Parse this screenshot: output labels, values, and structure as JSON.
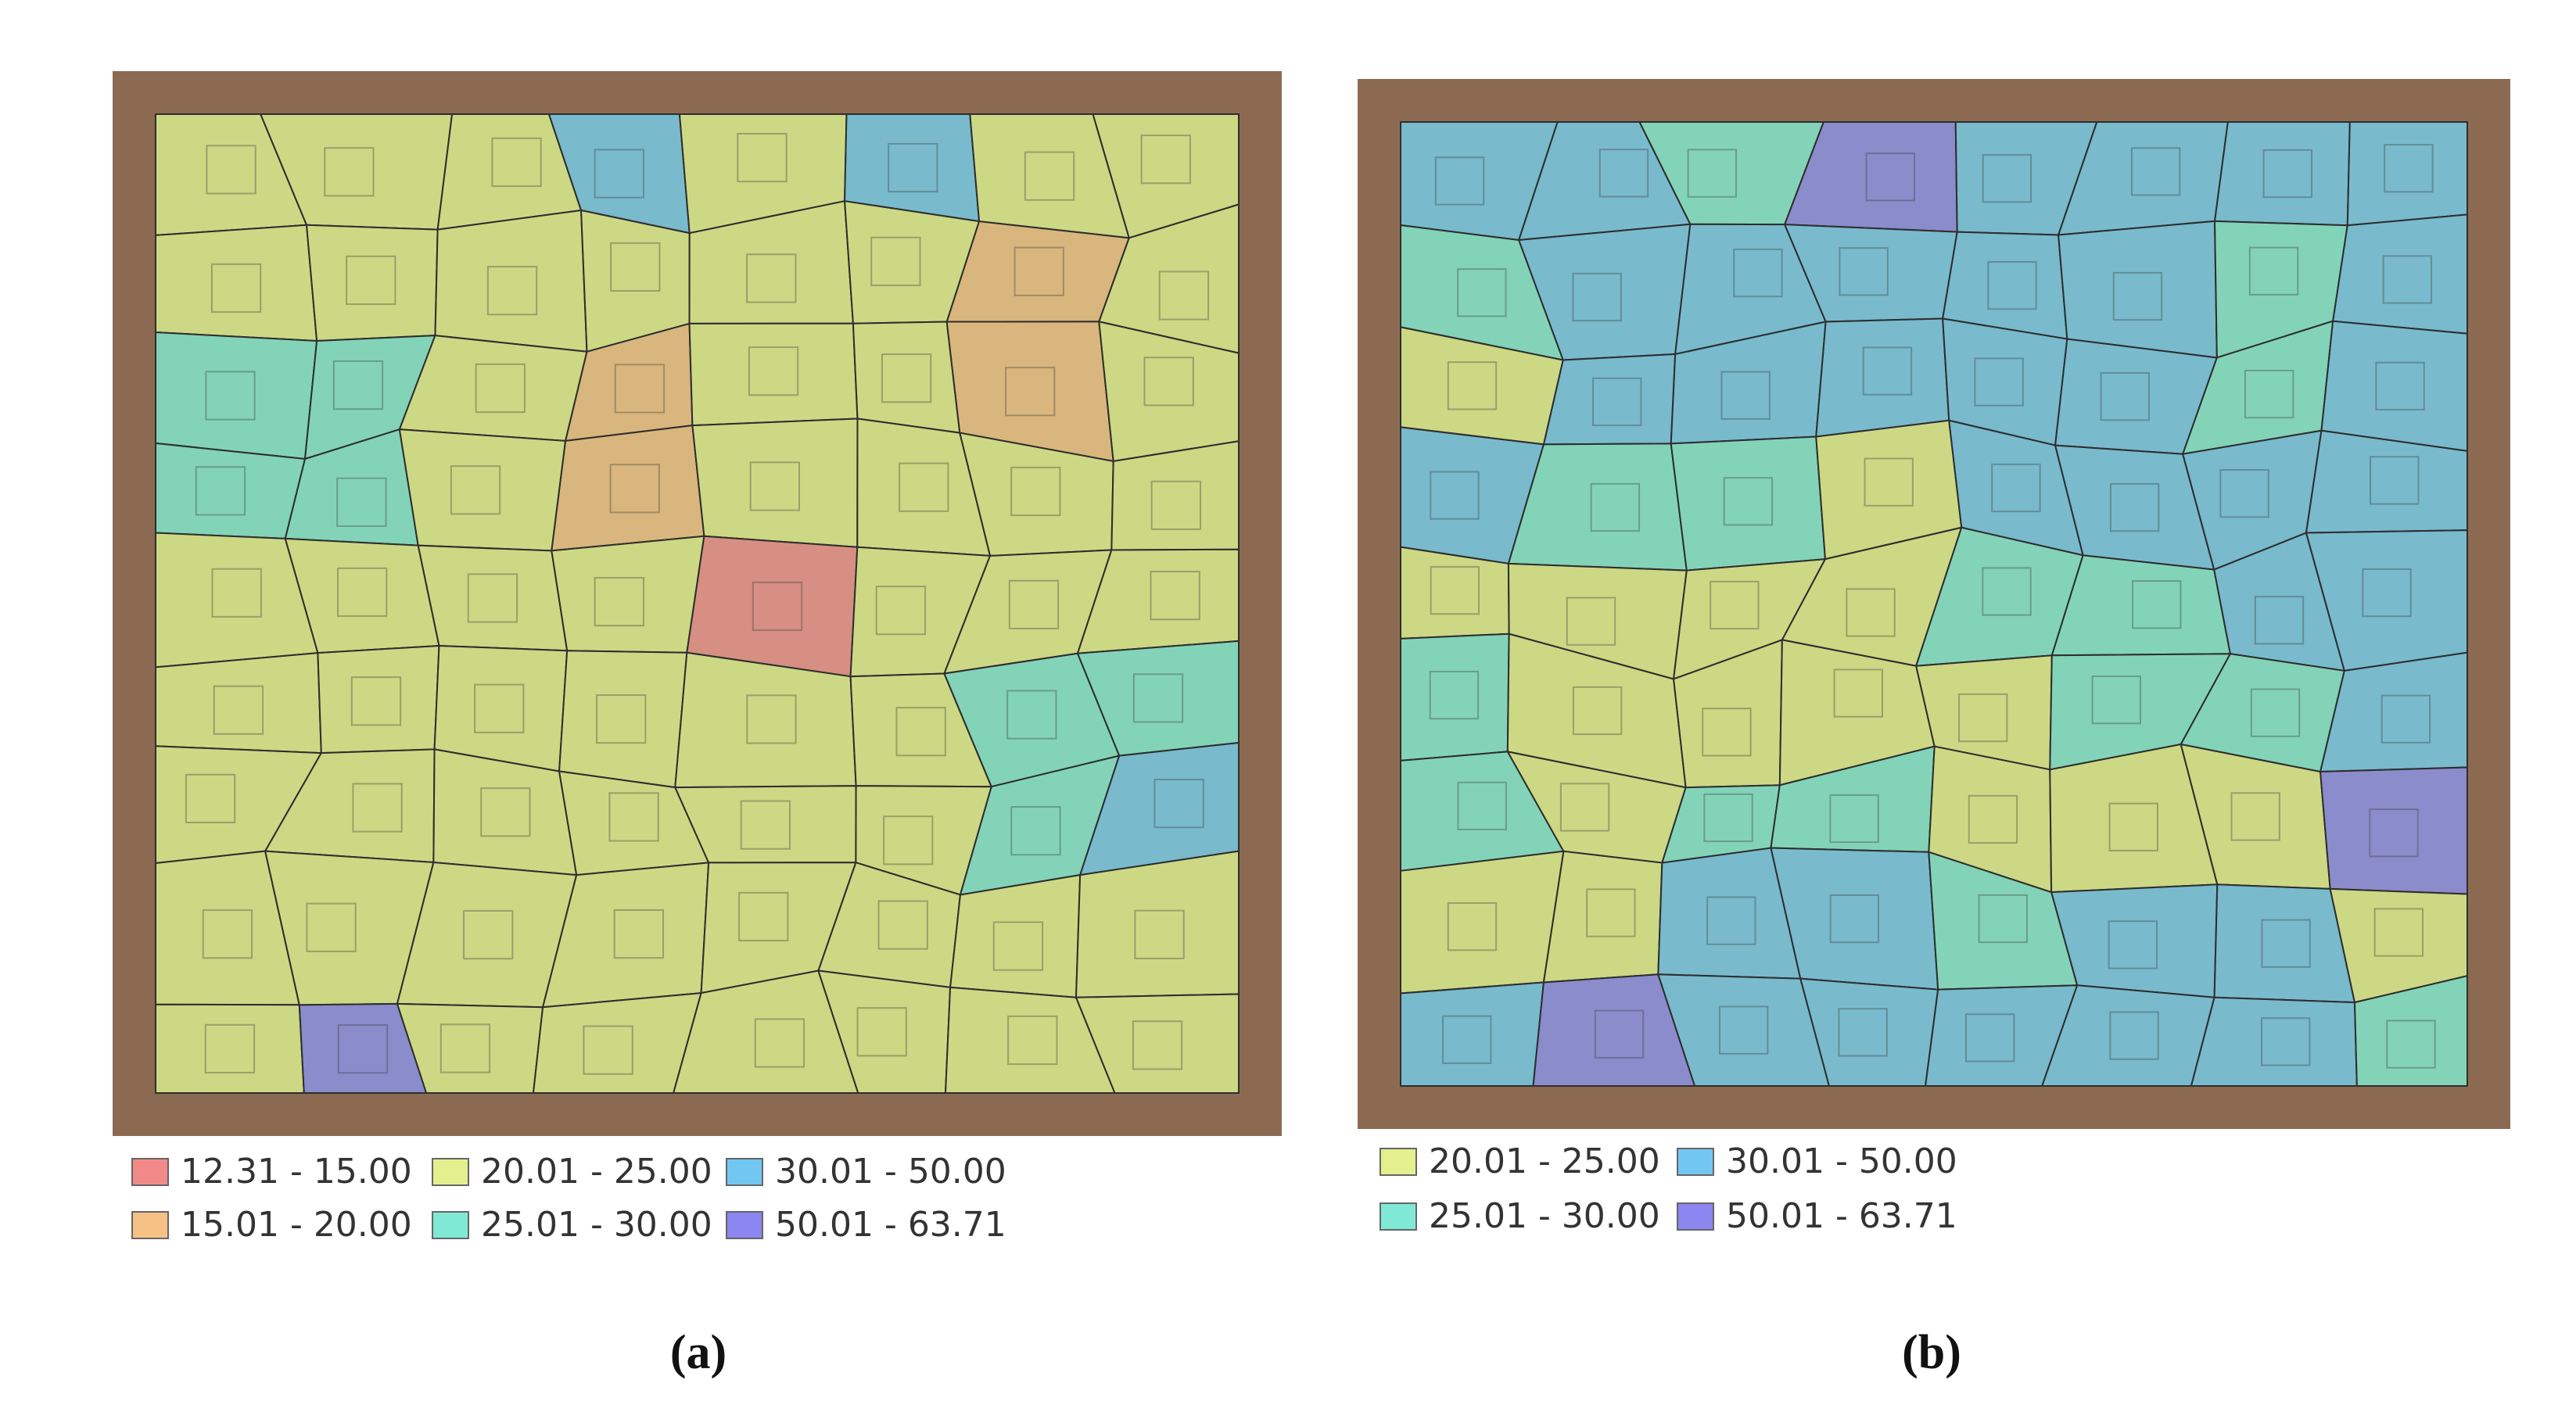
{
  "panels": [
    {
      "caption": "(a)",
      "legend": [
        {
          "label": "12.31 - 15.00",
          "color": "#f28a8a"
        },
        {
          "label": "15.01 - 20.00",
          "color": "#f6c184"
        },
        {
          "label": "20.01 - 25.00",
          "color": "#e4f08e"
        },
        {
          "label": "25.01 - 30.00",
          "color": "#7fe9d6"
        },
        {
          "label": "30.01 - 50.00",
          "color": "#72c6f2"
        },
        {
          "label": "50.01 - 63.71",
          "color": "#8b86f0"
        }
      ]
    },
    {
      "caption": "(b)",
      "legend": [
        {
          "label": "20.01 - 25.00",
          "color": "#e4f08e"
        },
        {
          "label": "25.01 - 30.00",
          "color": "#7fe9d6"
        },
        {
          "label": "30.01 - 50.00",
          "color": "#72c6f2"
        },
        {
          "label": "50.01 - 63.71",
          "color": "#8b86f0"
        }
      ]
    }
  ]
}
